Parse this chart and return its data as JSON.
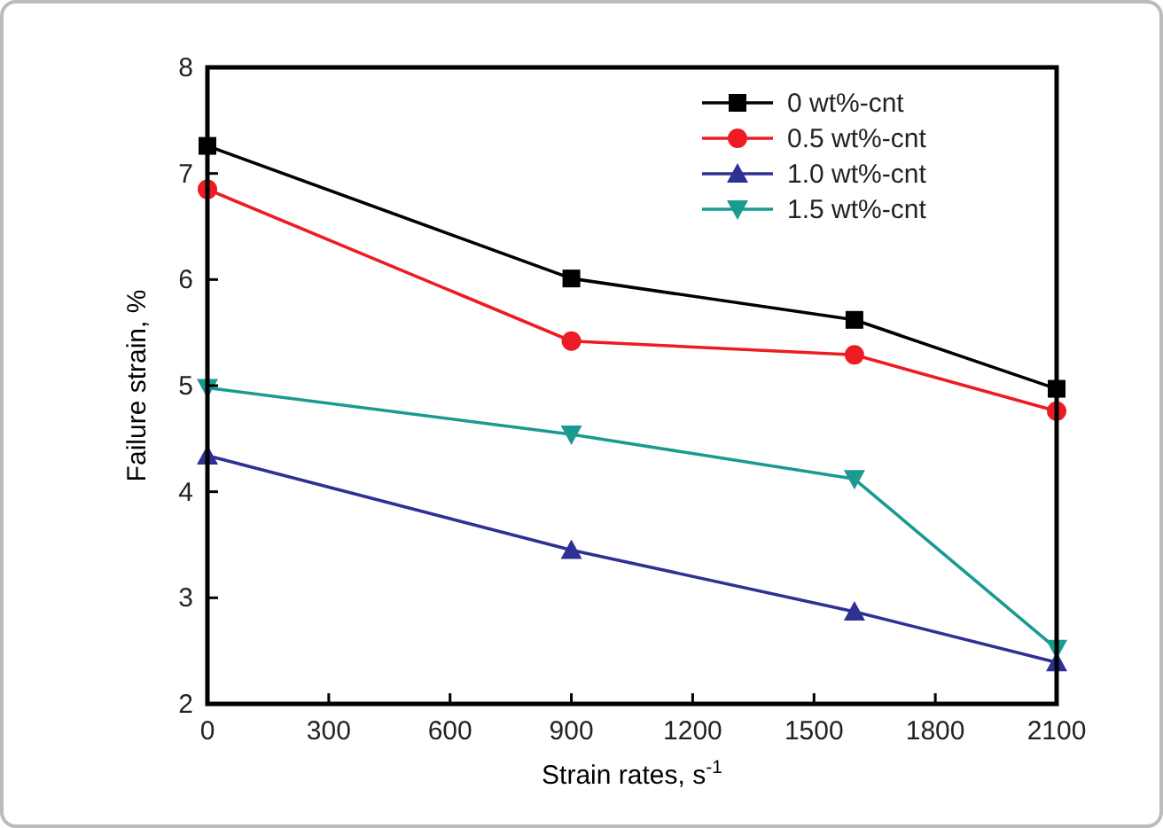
{
  "chart_data": {
    "type": "line",
    "xlabel": "Strain rates, s$^{-1}$",
    "ylabel": "Failure strain, %",
    "x": [
      0,
      900,
      1600,
      2100
    ],
    "xlim": [
      0,
      2100
    ],
    "xticks": [
      0,
      300,
      600,
      900,
      1200,
      1500,
      1800,
      2100
    ],
    "ylim": [
      2,
      8
    ],
    "yticks": [
      2,
      3,
      4,
      5,
      6,
      7,
      8
    ],
    "legend": "top right",
    "grid": false,
    "series": [
      {
        "name": "0 wt%-cnt",
        "color": "#000000",
        "marker": "square",
        "values": [
          7.26,
          6.01,
          5.62,
          4.97
        ]
      },
      {
        "name": "0.5 wt%-cnt",
        "color": "#ed1c24",
        "marker": "circle",
        "values": [
          6.85,
          5.42,
          5.29,
          4.76
        ]
      },
      {
        "name": "1.0 wt%-cnt",
        "color": "#2e3192",
        "marker": "triangle",
        "values": [
          4.34,
          3.45,
          2.87,
          2.39
        ]
      },
      {
        "name": "1.5 wt%-cnt",
        "color": "#1a9a90",
        "marker": "triangle-down",
        "values": [
          4.98,
          4.54,
          4.12,
          2.52
        ]
      }
    ]
  }
}
